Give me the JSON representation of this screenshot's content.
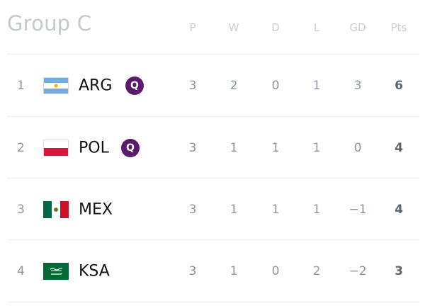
{
  "group": {
    "title": "Group C"
  },
  "columns": [
    "P",
    "W",
    "D",
    "L",
    "GD",
    "Pts"
  ],
  "rows": [
    {
      "rank": "1",
      "team": "ARG",
      "flag": "argentina-flag-icon",
      "qualified": true,
      "qual_label": "Q",
      "stats": [
        "3",
        "2",
        "0",
        "1",
        "3",
        "6"
      ]
    },
    {
      "rank": "2",
      "team": "POL",
      "flag": "poland-flag-icon",
      "qualified": true,
      "qual_label": "Q",
      "stats": [
        "3",
        "1",
        "1",
        "1",
        "0",
        "4"
      ]
    },
    {
      "rank": "3",
      "team": "MEX",
      "flag": "mexico-flag-icon",
      "qualified": false,
      "stats": [
        "3",
        "1",
        "1",
        "1",
        "−1",
        "4"
      ]
    },
    {
      "rank": "4",
      "team": "KSA",
      "flag": "saudi-arabia-flag-icon",
      "qualified": false,
      "stats": [
        "3",
        "1",
        "0",
        "2",
        "−2",
        "3"
      ]
    }
  ],
  "colors": {
    "title": "#c3c8d1",
    "header": "#c9ced6",
    "stat": "#8f96a3",
    "points": "#5d6472",
    "team": "#111111",
    "qualified_badge": "#5b1b6d",
    "divider": "#eceef2"
  }
}
